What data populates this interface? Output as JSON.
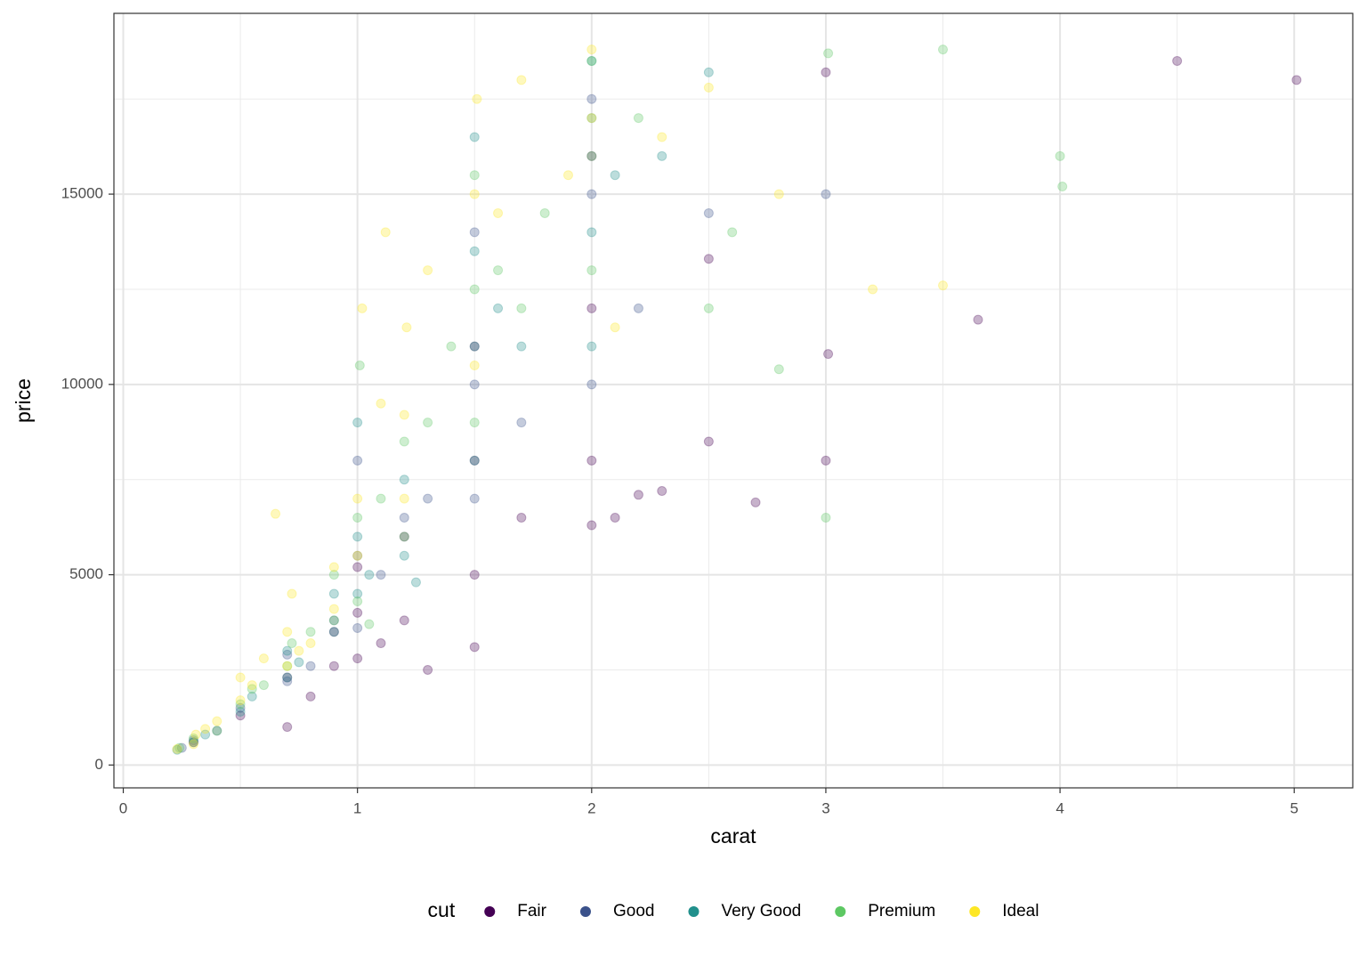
{
  "chart_data": {
    "type": "scatter",
    "x_label": "carat",
    "y_label": "price",
    "xlim": [
      -0.04,
      5.25
    ],
    "ylim": [
      -600,
      19750
    ],
    "xticks": [
      0,
      1,
      2,
      3,
      4,
      5
    ],
    "yticks": [
      0,
      5000,
      10000,
      15000
    ],
    "x_minor_grid": [
      0.5,
      1.5,
      2.5,
      3.5,
      4.5
    ],
    "y_minor_grid": [
      2500,
      7500,
      12500,
      17500
    ],
    "grid": true,
    "alpha": 0.3,
    "legend_title": "cut",
    "legend_position": "bottom",
    "series": [
      {
        "name": "Fair",
        "color": "#440154",
        "x": [
          0.3,
          0.5,
          0.7,
          0.7,
          0.9,
          0.9,
          1.0,
          1.0,
          1.0,
          1.2,
          1.2,
          1.5,
          1.5,
          1.5,
          1.5,
          1.7,
          2.0,
          2.0,
          2.0,
          2.0,
          2.1,
          2.2,
          2.5,
          2.5,
          3.0,
          3.0,
          3.01,
          4.5,
          5.01,
          3.65,
          2.7,
          1.1,
          0.8,
          1.3,
          2.3
        ],
        "values": [
          600,
          1300,
          1000,
          2300,
          2600,
          3500,
          2800,
          4000,
          5200,
          3800,
          6000,
          3100,
          5000,
          8000,
          11000,
          6500,
          6300,
          8000,
          12000,
          16000,
          6500,
          7100,
          8500,
          13300,
          8000,
          18200,
          10800,
          18500,
          18000,
          11700,
          6900,
          3200,
          1800,
          2500,
          7200
        ]
      },
      {
        "name": "Good",
        "color": "#3B528B",
        "x": [
          0.25,
          0.3,
          0.4,
          0.5,
          0.7,
          0.7,
          0.9,
          1.0,
          1.0,
          1.0,
          1.1,
          1.2,
          1.5,
          1.5,
          1.5,
          1.7,
          2.0,
          2.0,
          2.0,
          2.2,
          2.5,
          3.0,
          1.3,
          0.8
        ],
        "values": [
          450,
          650,
          900,
          1500,
          2200,
          2900,
          3800,
          3600,
          5500,
          8000,
          5000,
          6500,
          7000,
          10000,
          14000,
          9000,
          10000,
          15000,
          17500,
          12000,
          14500,
          15000,
          7000,
          2600
        ]
      },
      {
        "name": "Very Good",
        "color": "#21908C",
        "x": [
          0.23,
          0.3,
          0.35,
          0.5,
          0.55,
          0.7,
          0.7,
          0.75,
          0.9,
          0.9,
          1.0,
          1.0,
          1.0,
          1.05,
          1.2,
          1.2,
          1.5,
          1.5,
          1.5,
          1.5,
          1.6,
          1.7,
          2.0,
          2.0,
          2.0,
          2.0,
          2.1,
          2.3,
          2.5,
          1.25
        ],
        "values": [
          400,
          600,
          800,
          1400,
          1800,
          2300,
          3000,
          2700,
          3500,
          4500,
          4500,
          6000,
          9000,
          5000,
          5500,
          7500,
          8000,
          11000,
          13500,
          16500,
          12000,
          11000,
          11000,
          14000,
          17000,
          18500,
          15500,
          16000,
          18200,
          4800
        ]
      },
      {
        "name": "Premium",
        "color": "#5DC863",
        "x": [
          0.24,
          0.3,
          0.4,
          0.5,
          0.55,
          0.7,
          0.72,
          0.8,
          0.9,
          0.9,
          1.0,
          1.0,
          1.01,
          1.1,
          1.2,
          1.2,
          1.3,
          1.5,
          1.5,
          1.5,
          1.6,
          1.7,
          1.8,
          2.0,
          2.0,
          2.0,
          2.2,
          2.5,
          2.6,
          3.0,
          3.01,
          4.0,
          4.01,
          3.5,
          2.8,
          1.05,
          0.6,
          1.4
        ],
        "values": [
          450,
          700,
          900,
          1600,
          2000,
          2600,
          3200,
          3500,
          3800,
          5000,
          4300,
          6500,
          10500,
          7000,
          6000,
          8500,
          9000,
          9000,
          12500,
          15500,
          13000,
          12000,
          14500,
          13000,
          16000,
          18500,
          17000,
          12000,
          14000,
          6500,
          18700,
          16000,
          15200,
          18800,
          10400,
          3700,
          2100,
          11000
        ]
      },
      {
        "name": "Ideal",
        "color": "#FDE725",
        "x": [
          0.23,
          0.3,
          0.31,
          0.35,
          0.4,
          0.5,
          0.5,
          0.55,
          0.6,
          0.7,
          0.7,
          0.72,
          0.75,
          0.8,
          0.9,
          0.9,
          1.0,
          1.0,
          1.02,
          1.1,
          1.2,
          1.2,
          1.21,
          1.3,
          1.5,
          1.5,
          1.51,
          1.6,
          1.7,
          1.9,
          2.0,
          2.0,
          2.1,
          2.3,
          2.5,
          3.2,
          3.5,
          0.65,
          1.12,
          2.8
        ],
        "values": [
          420,
          550,
          800,
          950,
          1150,
          1700,
          2300,
          2100,
          2800,
          2600,
          3500,
          4500,
          3000,
          3200,
          4100,
          5200,
          5500,
          7000,
          12000,
          9500,
          7000,
          9200,
          11500,
          13000,
          10500,
          15000,
          17500,
          14500,
          18000,
          15500,
          17000,
          18800,
          11500,
          16500,
          17800,
          12500,
          12600,
          6600,
          14000,
          15000
        ]
      }
    ]
  }
}
